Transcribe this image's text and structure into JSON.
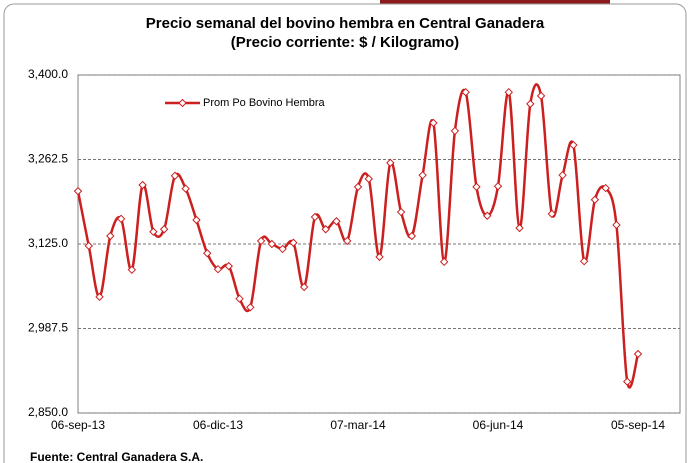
{
  "chart_data": {
    "type": "line",
    "title": "Precio semanal del bovino  hembra en Central Ganadera",
    "subtitle": "(Precio corriente: $ / Kilogramo)",
    "source": "Fuente: Central Ganadera S.A.",
    "categories": [
      "06-sep-13",
      null,
      null,
      null,
      null,
      null,
      null,
      null,
      null,
      null,
      null,
      null,
      null,
      "06-dic-13",
      null,
      null,
      null,
      null,
      null,
      null,
      null,
      null,
      null,
      null,
      null,
      null,
      "07-mar-14",
      null,
      null,
      null,
      null,
      null,
      null,
      null,
      null,
      null,
      null,
      null,
      null,
      "06-jun-14",
      null,
      null,
      null,
      null,
      null,
      null,
      null,
      null,
      null,
      null,
      null,
      null,
      "05-sep-14"
    ],
    "series": [
      {
        "name": "Prom Po Bovino Hembra",
        "color": "#cc1f1f",
        "values": [
          3211,
          3122,
          3039,
          3138,
          3166,
          3083,
          3221,
          3145,
          3149,
          3236,
          3215,
          3164,
          3110,
          3084,
          3089,
          3036,
          3022,
          3130,
          3125,
          3117,
          3127,
          3055,
          3169,
          3149,
          3162,
          3130,
          3218,
          3231,
          3104,
          3257,
          3177,
          3138,
          3237,
          3322,
          3096,
          3309,
          3372,
          3218,
          3171,
          3219,
          3372,
          3151,
          3353,
          3366,
          3174,
          3237,
          3286,
          3097,
          3197,
          3216,
          3156,
          2901,
          2946
        ]
      }
    ],
    "ylim": [
      2850,
      3400
    ],
    "yticks": [
      {
        "value": 2850,
        "label": "2,850.0"
      },
      {
        "value": 2987.5,
        "label": "2,987.5"
      },
      {
        "value": 3125,
        "label": "3,125.0"
      },
      {
        "value": 3262.5,
        "label": "3,262.5"
      },
      {
        "value": 3400,
        "label": "3,400.0"
      }
    ],
    "grid": true,
    "legend": "top-left"
  }
}
